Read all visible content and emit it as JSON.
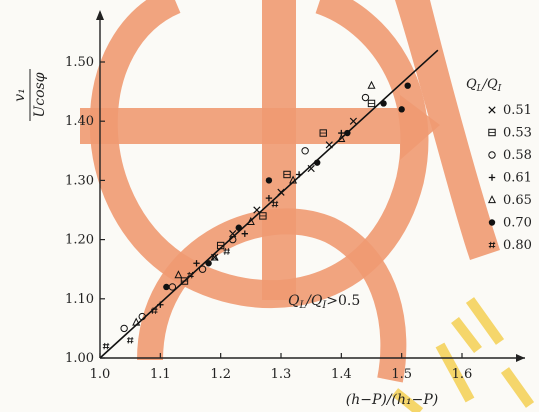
{
  "chart_data": {
    "type": "scatter",
    "title": "",
    "xlabel": "(h−P)/(h₁−P)",
    "ylabel_num": "v₁",
    "ylabel_den": "Ucosφ",
    "xlim": [
      1.0,
      1.65
    ],
    "ylim": [
      1.0,
      1.55
    ],
    "x_ticks": [
      "1.0",
      "1.1",
      "1.2",
      "1.3",
      "1.4",
      "1.5",
      "1.6"
    ],
    "y_ticks": [
      "1.00",
      "1.10",
      "1.20",
      "1.30",
      "1.40",
      "1.50"
    ],
    "legend_title": "QL/QI",
    "legend_title_parts": [
      "Q",
      "L",
      "/Q",
      "I"
    ],
    "legend_placement": "right",
    "annotation": "QL/QI>0.5",
    "annotation_parts": [
      "Q",
      "L",
      "/Q",
      "I",
      ">0.5"
    ],
    "fit_line": {
      "x": [
        1.0,
        1.56
      ],
      "y": [
        1.0,
        1.52
      ]
    },
    "series": [
      {
        "name": "0.51",
        "marker": "x",
        "x": [
          1.19,
          1.22,
          1.26,
          1.3,
          1.35,
          1.38,
          1.42
        ],
        "y": [
          1.17,
          1.21,
          1.25,
          1.28,
          1.32,
          1.36,
          1.4
        ]
      },
      {
        "name": "0.53",
        "marker": "square",
        "x": [
          1.14,
          1.2,
          1.27,
          1.31,
          1.37,
          1.45
        ],
        "y": [
          1.13,
          1.19,
          1.24,
          1.31,
          1.38,
          1.43
        ]
      },
      {
        "name": "0.58",
        "marker": "circle",
        "x": [
          1.04,
          1.07,
          1.12,
          1.17,
          1.22,
          1.34,
          1.44
        ],
        "y": [
          1.05,
          1.07,
          1.12,
          1.15,
          1.2,
          1.35,
          1.44
        ]
      },
      {
        "name": "0.61",
        "marker": "plus",
        "x": [
          1.1,
          1.16,
          1.24,
          1.28,
          1.33,
          1.4
        ],
        "y": [
          1.09,
          1.16,
          1.21,
          1.27,
          1.31,
          1.38
        ]
      },
      {
        "name": "0.65",
        "marker": "triangle",
        "x": [
          1.06,
          1.13,
          1.19,
          1.25,
          1.32,
          1.4,
          1.45
        ],
        "y": [
          1.06,
          1.14,
          1.17,
          1.23,
          1.3,
          1.37,
          1.46
        ]
      },
      {
        "name": "0.70",
        "marker": "dot",
        "x": [
          1.11,
          1.18,
          1.23,
          1.28,
          1.36,
          1.41,
          1.47,
          1.5,
          1.51
        ],
        "y": [
          1.12,
          1.16,
          1.22,
          1.3,
          1.33,
          1.38,
          1.43,
          1.42,
          1.46
        ]
      },
      {
        "name": "0.80",
        "marker": "hash",
        "x": [
          1.01,
          1.05,
          1.09,
          1.15,
          1.21,
          1.29
        ],
        "y": [
          1.02,
          1.03,
          1.08,
          1.14,
          1.18,
          1.26
        ]
      }
    ]
  }
}
